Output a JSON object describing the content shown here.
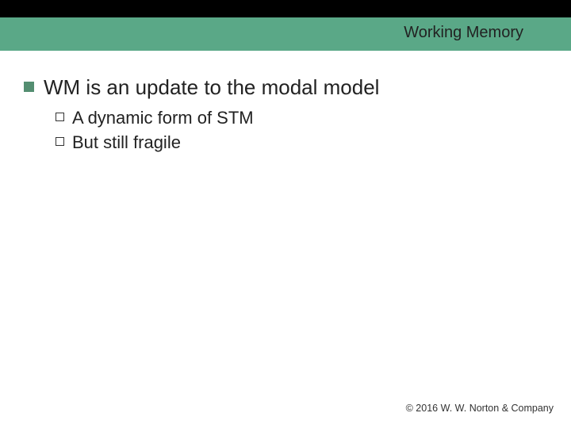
{
  "slide": {
    "title": "Working Memory",
    "title_fontsize": 20,
    "title_color": "#222222",
    "level1_fontsize": 26,
    "level2_fontsize": 22,
    "bullet_filled_color": "#548e71",
    "bullet_hollow_border": "#333333",
    "bars": {
      "top_black_height": 22,
      "top_green_height": 42,
      "green_color": "#5aa887",
      "black_color": "#000000"
    },
    "points": {
      "p1": {
        "text": "WM is an update to the modal model",
        "sub": {
          "s1": "A dynamic form of STM",
          "s2": "But still fragile"
        }
      }
    },
    "copyright": "© 2016 W. W. Norton & Company"
  }
}
